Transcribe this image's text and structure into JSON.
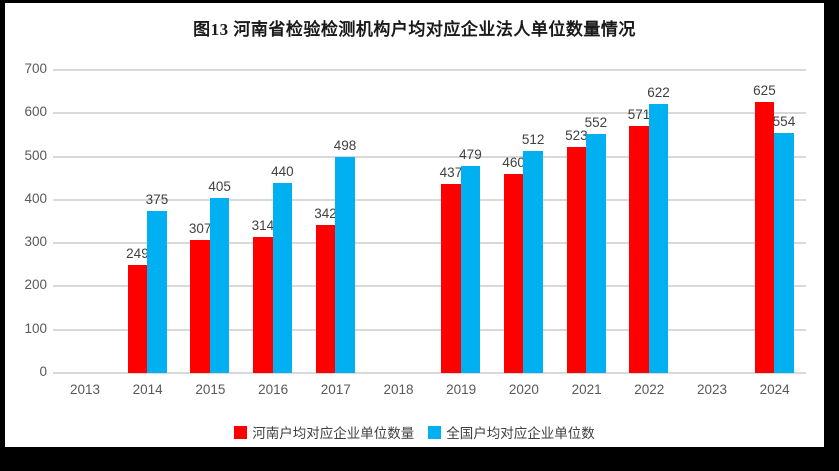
{
  "title": "图13 河南省检验检测机构户均对应企业法人单位数量情况",
  "chart_data": {
    "type": "bar",
    "title": "图13 河南省检验检测机构户均对应企业法人单位数量情况",
    "categories": [
      "2013",
      "2014",
      "2015",
      "2016",
      "2017",
      "2018",
      "2019",
      "2020",
      "2021",
      "2022",
      "2023",
      "2024"
    ],
    "series": [
      {
        "name": "河南户均对应企业单位数量",
        "color": "#ff0000",
        "values": [
          null,
          249,
          307,
          314,
          342,
          null,
          437,
          460,
          523,
          571,
          null,
          625
        ]
      },
      {
        "name": "全国户均对应企业单位数",
        "color": "#00b0f0",
        "values": [
          null,
          375,
          405,
          440,
          498,
          null,
          479,
          512,
          552,
          622,
          null,
          554
        ]
      }
    ],
    "ylim": [
      0,
      700
    ],
    "yticks": [
      0,
      100,
      200,
      300,
      400,
      500,
      600,
      700
    ],
    "xlabel": "",
    "ylabel": "",
    "grid": true,
    "data_labels": true,
    "legend_position": "bottom"
  },
  "colors": {
    "background": "#000000",
    "panel": "#ffffff",
    "grid_line": "#d9d9d9",
    "axis_text": "#595959",
    "label_text": "#404040",
    "series_henan": "#ff0000",
    "series_national": "#00b0f0"
  }
}
